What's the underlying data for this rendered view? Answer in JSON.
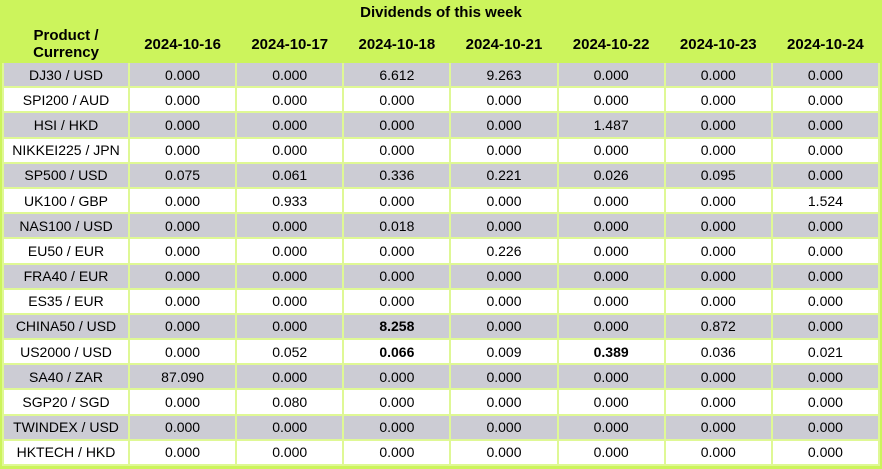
{
  "title": "Dividends of this week",
  "colors": {
    "header_green": "#CCF45C",
    "grid_green": "#DFF895",
    "row_gray": "#CCCCD4",
    "row_white": "#FFFFFF",
    "text": "#000000"
  },
  "chart_data": {
    "type": "table",
    "title": "Dividends of this week",
    "columns": [
      "Product / Currency",
      "2024-10-16",
      "2024-10-17",
      "2024-10-18",
      "2024-10-21",
      "2024-10-22",
      "2024-10-23",
      "2024-10-24"
    ],
    "rows": [
      {
        "product": "DJ30 / USD",
        "values": [
          "0.000",
          "0.000",
          "6.612",
          "9.263",
          "0.000",
          "0.000",
          "0.000"
        ],
        "bold_columns": []
      },
      {
        "product": "SPI200 / AUD",
        "values": [
          "0.000",
          "0.000",
          "0.000",
          "0.000",
          "0.000",
          "0.000",
          "0.000"
        ],
        "bold_columns": []
      },
      {
        "product": "HSI / HKD",
        "values": [
          "0.000",
          "0.000",
          "0.000",
          "0.000",
          "1.487",
          "0.000",
          "0.000"
        ],
        "bold_columns": []
      },
      {
        "product": "NIKKEI225 / JPN",
        "values": [
          "0.000",
          "0.000",
          "0.000",
          "0.000",
          "0.000",
          "0.000",
          "0.000"
        ],
        "bold_columns": []
      },
      {
        "product": "SP500 / USD",
        "values": [
          "0.075",
          "0.061",
          "0.336",
          "0.221",
          "0.026",
          "0.095",
          "0.000"
        ],
        "bold_columns": []
      },
      {
        "product": "UK100 / GBP",
        "values": [
          "0.000",
          "0.933",
          "0.000",
          "0.000",
          "0.000",
          "0.000",
          "1.524"
        ],
        "bold_columns": []
      },
      {
        "product": "NAS100 / USD",
        "values": [
          "0.000",
          "0.000",
          "0.018",
          "0.000",
          "0.000",
          "0.000",
          "0.000"
        ],
        "bold_columns": []
      },
      {
        "product": "EU50 / EUR",
        "values": [
          "0.000",
          "0.000",
          "0.000",
          "0.226",
          "0.000",
          "0.000",
          "0.000"
        ],
        "bold_columns": []
      },
      {
        "product": "FRA40 / EUR",
        "values": [
          "0.000",
          "0.000",
          "0.000",
          "0.000",
          "0.000",
          "0.000",
          "0.000"
        ],
        "bold_columns": []
      },
      {
        "product": "ES35 / EUR",
        "values": [
          "0.000",
          "0.000",
          "0.000",
          "0.000",
          "0.000",
          "0.000",
          "0.000"
        ],
        "bold_columns": []
      },
      {
        "product": "CHINA50 / USD",
        "values": [
          "0.000",
          "0.000",
          "8.258",
          "0.000",
          "0.000",
          "0.872",
          "0.000"
        ],
        "bold_columns": [
          2
        ]
      },
      {
        "product": "US2000 / USD",
        "values": [
          "0.000",
          "0.052",
          "0.066",
          "0.009",
          "0.389",
          "0.036",
          "0.021"
        ],
        "bold_columns": [
          2,
          4
        ]
      },
      {
        "product": "SA40 / ZAR",
        "values": [
          "87.090",
          "0.000",
          "0.000",
          "0.000",
          "0.000",
          "0.000",
          "0.000"
        ],
        "bold_columns": []
      },
      {
        "product": "SGP20 / SGD",
        "values": [
          "0.000",
          "0.080",
          "0.000",
          "0.000",
          "0.000",
          "0.000",
          "0.000"
        ],
        "bold_columns": []
      },
      {
        "product": "TWINDEX / USD",
        "values": [
          "0.000",
          "0.000",
          "0.000",
          "0.000",
          "0.000",
          "0.000",
          "0.000"
        ],
        "bold_columns": []
      },
      {
        "product": "HKTECH / HKD",
        "values": [
          "0.000",
          "0.000",
          "0.000",
          "0.000",
          "0.000",
          "0.000",
          "0.000"
        ],
        "bold_columns": []
      }
    ]
  }
}
